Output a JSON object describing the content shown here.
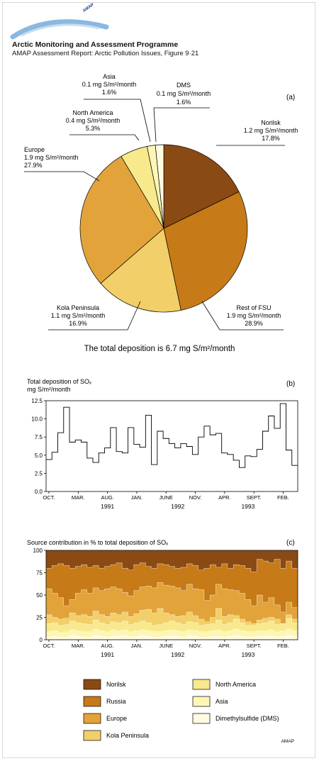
{
  "header": {
    "logo_text": "AMAP",
    "title": "Arctic Monitoring and Assessment Programme",
    "subtitle": "AMAP Assessment Report: Arctic Pollution Issues, Figure 9·21"
  },
  "footer": {
    "credit": "AMAP"
  },
  "colors": {
    "Norilsk": "#8a4a14",
    "Rest of FSU": "#c67a18",
    "Europe": "#e2a33a",
    "Kola Peninsula": "#f2cf68",
    "North America": "#f8e98c",
    "Asia": "#fdf6b4",
    "DMS": "#fffbe2"
  },
  "chart_data": [
    {
      "type": "pie",
      "panel_label": "(a)",
      "slices": [
        {
          "name": "Norilsk",
          "value_text": "1.2 mg S/m²/month",
          "percent": 17.8,
          "percent_text": "17.8%"
        },
        {
          "name": "Rest of FSU",
          "value_text": "1.9 mg S/m²/month",
          "percent": 28.9,
          "percent_text": "28.9%"
        },
        {
          "name": "Kola Peninsula",
          "value_text": "1.1 mg S/m²/month",
          "percent": 16.9,
          "percent_text": "16.9%"
        },
        {
          "name": "Europe",
          "value_text": "1.9 mg S/m²/month",
          "percent": 27.9,
          "percent_text": "27.9%"
        },
        {
          "name": "North America",
          "value_text": "0.4 mg S/m²/month",
          "percent": 5.3,
          "percent_text": "5.3%"
        },
        {
          "name": "Asia",
          "value_text": "0.1 mg S/m²/month",
          "percent": 1.6,
          "percent_text": "1.6%"
        },
        {
          "name": "DMS",
          "value_text": "0.1 mg S/m²/month",
          "percent": 1.6,
          "percent_text": "1.6%"
        }
      ],
      "caption": "The total deposition is 6.7 mg S/m²/month"
    },
    {
      "type": "line",
      "panel_label": "(b)",
      "title": "Total deposition of SOₓ",
      "ylabel": "mg S/m²/month",
      "ylim": [
        0,
        12.5
      ],
      "yticks": [
        "0.0",
        "2.5",
        "5.0",
        "7.5",
        "10.0",
        "12.5"
      ],
      "ytick_values": [
        0,
        2.5,
        5,
        7.5,
        10,
        12.5
      ],
      "x_tick_labels": [
        "OCT.",
        "MAR.",
        "AUG.",
        "JAN.",
        "JUNE",
        "NOV.",
        "APR.",
        "SEPT.",
        "FEB."
      ],
      "x_tick_months": [
        0,
        5,
        10,
        15,
        20,
        25,
        30,
        35,
        40
      ],
      "year_labels": [
        "1991",
        "1992",
        "1993"
      ],
      "year_months": [
        10,
        22,
        34
      ],
      "values": [
        4.4,
        5.4,
        8.1,
        11.6,
        6.8,
        7.1,
        6.8,
        4.6,
        4.0,
        5.3,
        6.0,
        8.8,
        5.5,
        5.3,
        8.8,
        6.5,
        6.1,
        10.5,
        3.7,
        8.3,
        7.3,
        6.6,
        6.0,
        6.6,
        6.2,
        5.1,
        7.5,
        9.0,
        7.8,
        8.0,
        5.3,
        5.1,
        4.3,
        3.3,
        4.9,
        4.8,
        5.8,
        8.3,
        10.4,
        8.7,
        12.1,
        5.7,
        3.6
      ]
    },
    {
      "type": "area",
      "stacked": true,
      "panel_label": "(c)",
      "title": "Source contribution in % to total deposition of SOₓ",
      "ylim": [
        0,
        100
      ],
      "yticks": [
        "0",
        "25",
        "50",
        "75",
        "100"
      ],
      "ytick_values": [
        0,
        25,
        50,
        75,
        100
      ],
      "x_tick_labels": [
        "OCT.",
        "MAR.",
        "AUG.",
        "JAN.",
        "JUNE",
        "NOV.",
        "APR.",
        "SEPT.",
        "FEB."
      ],
      "x_tick_months": [
        0,
        5,
        10,
        15,
        20,
        25,
        30,
        35,
        40
      ],
      "year_labels": [
        "1991",
        "1992",
        "1993"
      ],
      "year_months": [
        10,
        22,
        34
      ],
      "series_order_bottom_to_top": [
        "DMS",
        "Asia",
        "North America",
        "Kola Peninsula",
        "Europe",
        "Russia",
        "Norilsk"
      ],
      "cumulative_tops": {
        "DMS": [
          3,
          4,
          3,
          3,
          5,
          4,
          3,
          3,
          5,
          4,
          3,
          4,
          4,
          5,
          3,
          4,
          5,
          4,
          3,
          3,
          4,
          4,
          4,
          3,
          5,
          4,
          3,
          3,
          4,
          4,
          3,
          4,
          5,
          4,
          3,
          3,
          4,
          4,
          4,
          3,
          4,
          5,
          4
        ],
        "Asia": [
          9,
          10,
          8,
          9,
          11,
          10,
          9,
          9,
          12,
          10,
          9,
          11,
          10,
          11,
          9,
          10,
          11,
          10,
          9,
          9,
          10,
          11,
          10,
          9,
          11,
          10,
          9,
          9,
          10,
          11,
          9,
          10,
          12,
          10,
          9,
          9,
          10,
          10,
          11,
          9,
          10,
          12,
          10
        ],
        "North America": [
          18,
          19,
          16,
          17,
          21,
          19,
          18,
          17,
          22,
          19,
          17,
          20,
          19,
          21,
          17,
          19,
          21,
          19,
          16,
          17,
          19,
          21,
          19,
          17,
          20,
          19,
          16,
          17,
          18,
          22,
          17,
          19,
          23,
          19,
          16,
          16,
          18,
          19,
          21,
          17,
          18,
          24,
          19
        ],
        "Kola Peninsula": [
          28,
          25,
          23,
          24,
          30,
          27,
          28,
          26,
          32,
          28,
          26,
          30,
          28,
          31,
          26,
          29,
          33,
          34,
          30,
          35,
          30,
          28,
          26,
          27,
          31,
          27,
          23,
          20,
          25,
          35,
          26,
          28,
          27,
          23,
          20,
          18,
          22,
          24,
          25,
          23,
          18,
          28,
          23
        ],
        "Europe": [
          57,
          52,
          47,
          38,
          45,
          52,
          56,
          52,
          58,
          55,
          57,
          59,
          57,
          53,
          49,
          55,
          59,
          60,
          58,
          64,
          61,
          60,
          58,
          55,
          62,
          57,
          56,
          44,
          50,
          62,
          57,
          56,
          55,
          52,
          45,
          38,
          50,
          42,
          47,
          39,
          31,
          42,
          36
        ],
        "Russia": [
          80,
          83,
          85,
          83,
          80,
          82,
          84,
          81,
          83,
          80,
          82,
          84,
          86,
          80,
          78,
          84,
          86,
          82,
          80,
          85,
          84,
          82,
          80,
          81,
          85,
          83,
          78,
          80,
          84,
          81,
          85,
          80,
          84,
          83,
          80,
          76,
          90,
          88,
          86,
          90,
          80,
          88,
          80
        ],
        "Norilsk": [
          100,
          100,
          100,
          100,
          100,
          100,
          100,
          100,
          100,
          100,
          100,
          100,
          100,
          100,
          100,
          100,
          100,
          100,
          100,
          100,
          100,
          100,
          100,
          100,
          100,
          100,
          100,
          100,
          100,
          100,
          100,
          100,
          100,
          100,
          100,
          100,
          100,
          100,
          100,
          100,
          100,
          100,
          100
        ]
      },
      "legend": [
        {
          "name": "Norilsk",
          "color": "#8a4a14"
        },
        {
          "name": "North America",
          "color": "#f8e98c"
        },
        {
          "name": "Russia",
          "color": "#c67a18"
        },
        {
          "name": "Asia",
          "color": "#fdf6b4"
        },
        {
          "name": "Europe",
          "color": "#e2a33a"
        },
        {
          "name": "Dimethylsulfide (DMS)",
          "color": "#fffbe2"
        },
        {
          "name": "Kola Peninsula",
          "color": "#f2cf68"
        }
      ]
    }
  ]
}
